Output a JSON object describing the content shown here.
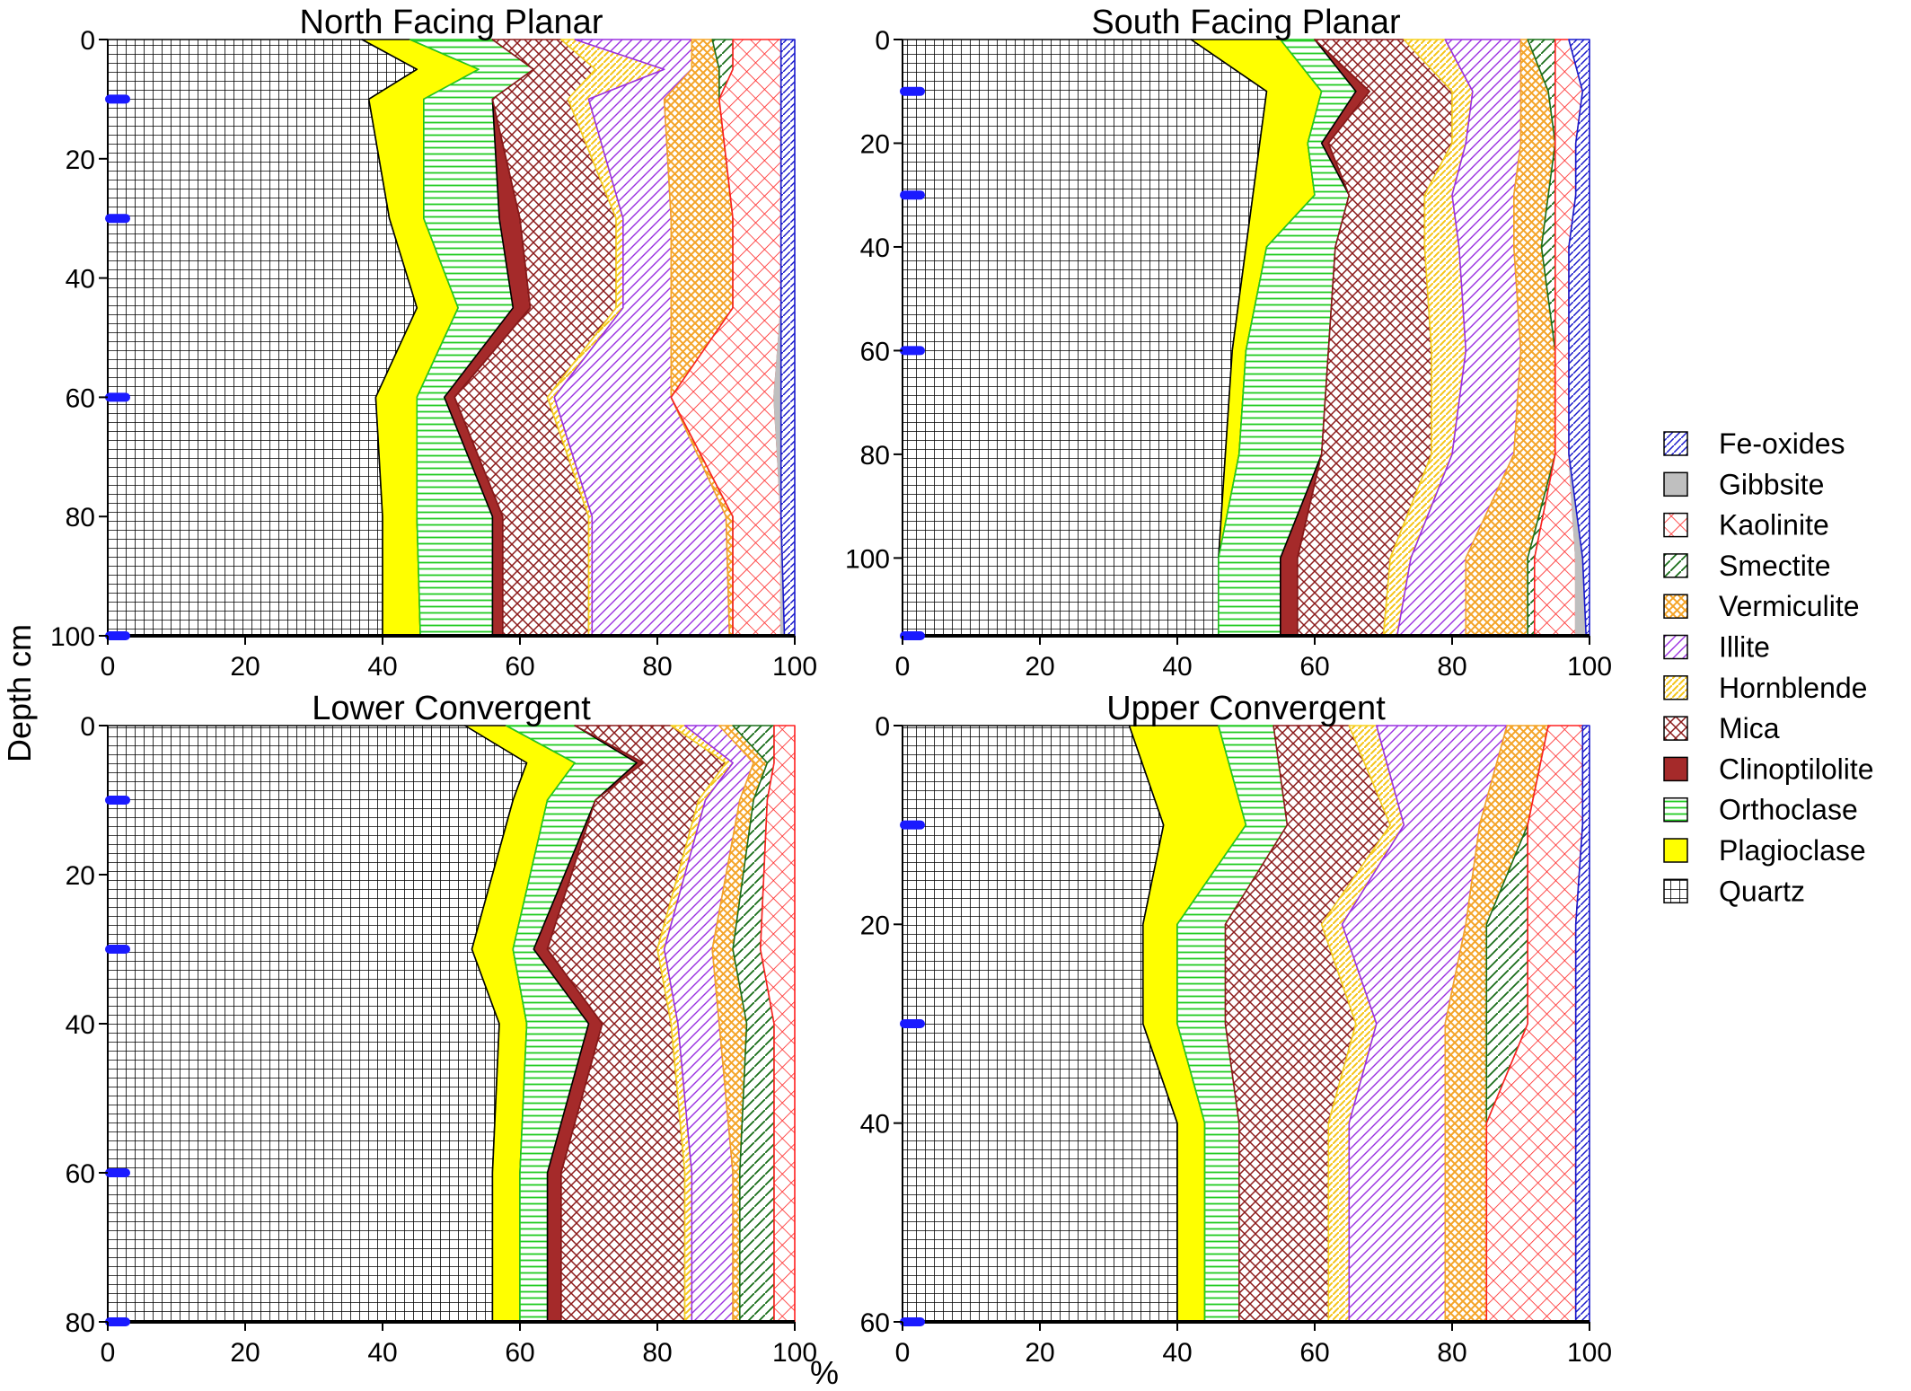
{
  "figure": {
    "ylabel": "Depth cm",
    "xlabel": "%",
    "marker_color": "#1a1aff"
  },
  "legend": [
    {
      "name": "Fe-oxides",
      "pattern": "fe"
    },
    {
      "name": "Gibbsite",
      "pattern": "gib"
    },
    {
      "name": "Kaolinite",
      "pattern": "kao"
    },
    {
      "name": "Smectite",
      "pattern": "sme"
    },
    {
      "name": "Vermiculite",
      "pattern": "ver"
    },
    {
      "name": "Illite",
      "pattern": "ill"
    },
    {
      "name": "Hornblende",
      "pattern": "hor"
    },
    {
      "name": "Mica",
      "pattern": "mic"
    },
    {
      "name": "Clinoptilolite",
      "pattern": "cli"
    },
    {
      "name": "Orthoclase",
      "pattern": "ort"
    },
    {
      "name": "Plagioclase",
      "pattern": "pla"
    },
    {
      "name": "Quartz",
      "pattern": "qua"
    }
  ],
  "mineral_colors": {
    "Fe-oxides": "#1a1acc",
    "Gibbsite": "#bfbfbf",
    "Kaolinite": "#ff2020",
    "Smectite": "#1a6e1a",
    "Vermiculite": "#f4a428",
    "Illite": "#9a30e0",
    "Hornblende": "#f5d020",
    "Mica": "#8b1a1a",
    "Clinoptilolite": "#a52a2a",
    "Orthoclase": "#22cc22",
    "Plagioclase": "#ffff00",
    "Quartz": "#000000"
  },
  "chart_data": [
    {
      "type": "area",
      "title": "North Facing Planar",
      "orientation": "depth-profile, cumulative percent on x",
      "xlim": [
        0,
        100
      ],
      "ylim": [
        0,
        100
      ],
      "x_ticks": [
        0,
        20,
        40,
        60,
        80,
        100
      ],
      "y_ticks": [
        0,
        20,
        40,
        60,
        80,
        100
      ],
      "sample_depths_marked": [
        10,
        30,
        60,
        100
      ],
      "depth": [
        0,
        5,
        10,
        30,
        45,
        60,
        80,
        100
      ],
      "cumulative_boundaries": [
        {
          "after": "Quartz",
          "values": [
            37,
            45,
            38,
            41,
            45,
            39,
            40,
            40
          ]
        },
        {
          "after": "Plagioclase",
          "values": [
            44,
            54,
            46,
            46,
            51,
            45,
            45,
            45.5
          ]
        },
        {
          "after": "Orthoclase",
          "values": [
            56,
            62,
            56,
            57,
            59,
            49,
            56,
            56
          ]
        },
        {
          "after": "Clinoptilolite",
          "values": [
            56,
            62,
            56,
            60,
            61.5,
            50.5,
            57.5,
            57.5
          ]
        },
        {
          "after": "Mica",
          "values": [
            66,
            71,
            67,
            74,
            74,
            64,
            70,
            70
          ]
        },
        {
          "after": "Hornblende",
          "values": [
            68,
            81,
            70,
            75,
            75,
            65,
            70.5,
            70.5
          ]
        },
        {
          "after": "Illite",
          "values": [
            85,
            85,
            81,
            82,
            82,
            82,
            90,
            90.5
          ]
        },
        {
          "after": "Vermiculite",
          "values": [
            88,
            89,
            89,
            91,
            91,
            82,
            91,
            91
          ]
        },
        {
          "after": "Smectite",
          "values": [
            91,
            91,
            89,
            91,
            91,
            82,
            91,
            91
          ]
        },
        {
          "after": "Kaolinite",
          "values": [
            98,
            98,
            98,
            98,
            98,
            97,
            98,
            98
          ]
        },
        {
          "after": "Gibbsite",
          "values": [
            98,
            98,
            98,
            98,
            98,
            98,
            98,
            98.5
          ]
        },
        {
          "after": "Fe-oxides",
          "values": [
            100,
            100,
            100,
            100,
            100,
            100,
            100,
            100
          ]
        }
      ]
    },
    {
      "type": "area",
      "title": "South Facing Planar",
      "orientation": "depth-profile, cumulative percent on x",
      "xlim": [
        0,
        100
      ],
      "ylim": [
        0,
        115
      ],
      "x_ticks": [
        0,
        20,
        40,
        60,
        80,
        100
      ],
      "y_ticks": [
        0,
        20,
        40,
        60,
        80,
        100
      ],
      "sample_depths_marked": [
        10,
        30,
        60,
        115
      ],
      "depth": [
        0,
        10,
        20,
        30,
        40,
        60,
        80,
        100,
        115
      ],
      "cumulative_boundaries": [
        {
          "after": "Quartz",
          "values": [
            42,
            53,
            52,
            51,
            50,
            48,
            47,
            46,
            46
          ]
        },
        {
          "after": "Plagioclase",
          "values": [
            55,
            61,
            59,
            60,
            53,
            50,
            49,
            46,
            46
          ]
        },
        {
          "after": "Orthoclase",
          "values": [
            60,
            66,
            61,
            65,
            63,
            62,
            61,
            55,
            55
          ]
        },
        {
          "after": "Clinoptilolite",
          "values": [
            60,
            68,
            62,
            65,
            63,
            62,
            61,
            57.5,
            57.5
          ]
        },
        {
          "after": "Mica",
          "values": [
            73,
            80,
            80,
            76,
            76,
            77,
            77,
            71,
            70
          ]
        },
        {
          "after": "Hornblende",
          "values": [
            79,
            83,
            82,
            80,
            81,
            82,
            80,
            74,
            72
          ]
        },
        {
          "after": "Illite",
          "values": [
            90,
            90,
            90,
            89,
            89,
            90,
            89,
            82,
            82
          ]
        },
        {
          "after": "Vermiculite",
          "values": [
            91,
            94,
            95,
            94,
            93,
            95,
            95,
            91,
            91
          ]
        },
        {
          "after": "Smectite",
          "values": [
            95,
            95,
            95,
            95,
            95,
            95,
            95,
            92,
            92
          ]
        },
        {
          "after": "Kaolinite",
          "values": [
            97,
            99,
            98,
            98,
            97,
            97,
            97,
            98,
            98
          ]
        },
        {
          "after": "Gibbsite",
          "values": [
            97,
            99,
            98,
            98,
            97,
            97,
            97,
            99,
            99.5
          ]
        },
        {
          "after": "Fe-oxides",
          "values": [
            100,
            100,
            100,
            100,
            100,
            100,
            100,
            100,
            100
          ]
        }
      ]
    },
    {
      "type": "area",
      "title": "Lower Convergent",
      "orientation": "depth-profile, cumulative percent on x",
      "xlim": [
        0,
        100
      ],
      "ylim": [
        0,
        80
      ],
      "x_ticks": [
        0,
        20,
        40,
        60,
        80,
        100
      ],
      "y_ticks": [
        0,
        20,
        40,
        60,
        80
      ],
      "sample_depths_marked": [
        10,
        30,
        60,
        80
      ],
      "depth": [
        0,
        5,
        10,
        30,
        40,
        60,
        80
      ],
      "cumulative_boundaries": [
        {
          "after": "Quartz",
          "values": [
            52,
            61,
            59,
            53,
            57,
            56,
            56
          ]
        },
        {
          "after": "Plagioclase",
          "values": [
            58,
            68,
            64,
            59,
            61,
            60,
            60
          ]
        },
        {
          "after": "Orthoclase",
          "values": [
            68,
            77,
            71,
            62,
            70,
            64,
            64
          ]
        },
        {
          "after": "Clinoptilolite",
          "values": [
            68,
            78,
            71,
            64,
            72,
            66,
            66
          ]
        },
        {
          "after": "Mica",
          "values": [
            82,
            90,
            86,
            80,
            82,
            84,
            84
          ]
        },
        {
          "after": "Hornblende",
          "values": [
            84,
            91,
            87,
            81,
            83,
            85,
            85
          ]
        },
        {
          "after": "Illite",
          "values": [
            89,
            94,
            92,
            88,
            89,
            91,
            91
          ]
        },
        {
          "after": "Vermiculite",
          "values": [
            91,
            96,
            94,
            91,
            93,
            92,
            92
          ]
        },
        {
          "after": "Smectite",
          "values": [
            97,
            97,
            96,
            95,
            97,
            97,
            97
          ]
        },
        {
          "after": "Kaolinite",
          "values": [
            100,
            100,
            100,
            100,
            100,
            100,
            100
          ]
        },
        {
          "after": "Gibbsite",
          "values": [
            100,
            100,
            100,
            100,
            100,
            100,
            100
          ]
        },
        {
          "after": "Fe-oxides",
          "values": [
            100,
            100,
            100,
            100,
            100,
            100,
            100
          ]
        }
      ]
    },
    {
      "type": "area",
      "title": "Upper Convergent",
      "orientation": "depth-profile, cumulative percent on x",
      "xlim": [
        0,
        100
      ],
      "ylim": [
        0,
        60
      ],
      "x_ticks": [
        0,
        20,
        40,
        60,
        80,
        100
      ],
      "y_ticks": [
        0,
        20,
        40,
        60
      ],
      "sample_depths_marked": [
        10,
        30,
        60
      ],
      "depth": [
        0,
        10,
        20,
        30,
        40,
        60
      ],
      "cumulative_boundaries": [
        {
          "after": "Quartz",
          "values": [
            33,
            38,
            35,
            35,
            40,
            40
          ]
        },
        {
          "after": "Plagioclase",
          "values": [
            46,
            50,
            40,
            40,
            44,
            44
          ]
        },
        {
          "after": "Orthoclase",
          "values": [
            54,
            56,
            47,
            47,
            49,
            49
          ]
        },
        {
          "after": "Clinoptilolite",
          "values": [
            54,
            56,
            47,
            47,
            49,
            49
          ]
        },
        {
          "after": "Mica",
          "values": [
            65,
            71,
            61,
            66,
            62,
            62
          ]
        },
        {
          "after": "Hornblende",
          "values": [
            69,
            73,
            64,
            69,
            65,
            65
          ]
        },
        {
          "after": "Illite",
          "values": [
            88,
            84,
            82,
            79,
            79,
            79
          ]
        },
        {
          "after": "Vermiculite",
          "values": [
            94,
            91,
            85,
            85,
            85,
            85
          ]
        },
        {
          "after": "Smectite",
          "values": [
            94,
            91,
            91,
            91,
            85,
            85
          ]
        },
        {
          "after": "Kaolinite",
          "values": [
            99,
            99,
            98,
            98,
            98,
            98
          ]
        },
        {
          "after": "Gibbsite",
          "values": [
            99,
            99,
            98,
            98,
            98,
            98
          ]
        },
        {
          "after": "Fe-oxides",
          "values": [
            100,
            100,
            100,
            100,
            100,
            100
          ]
        }
      ]
    }
  ]
}
